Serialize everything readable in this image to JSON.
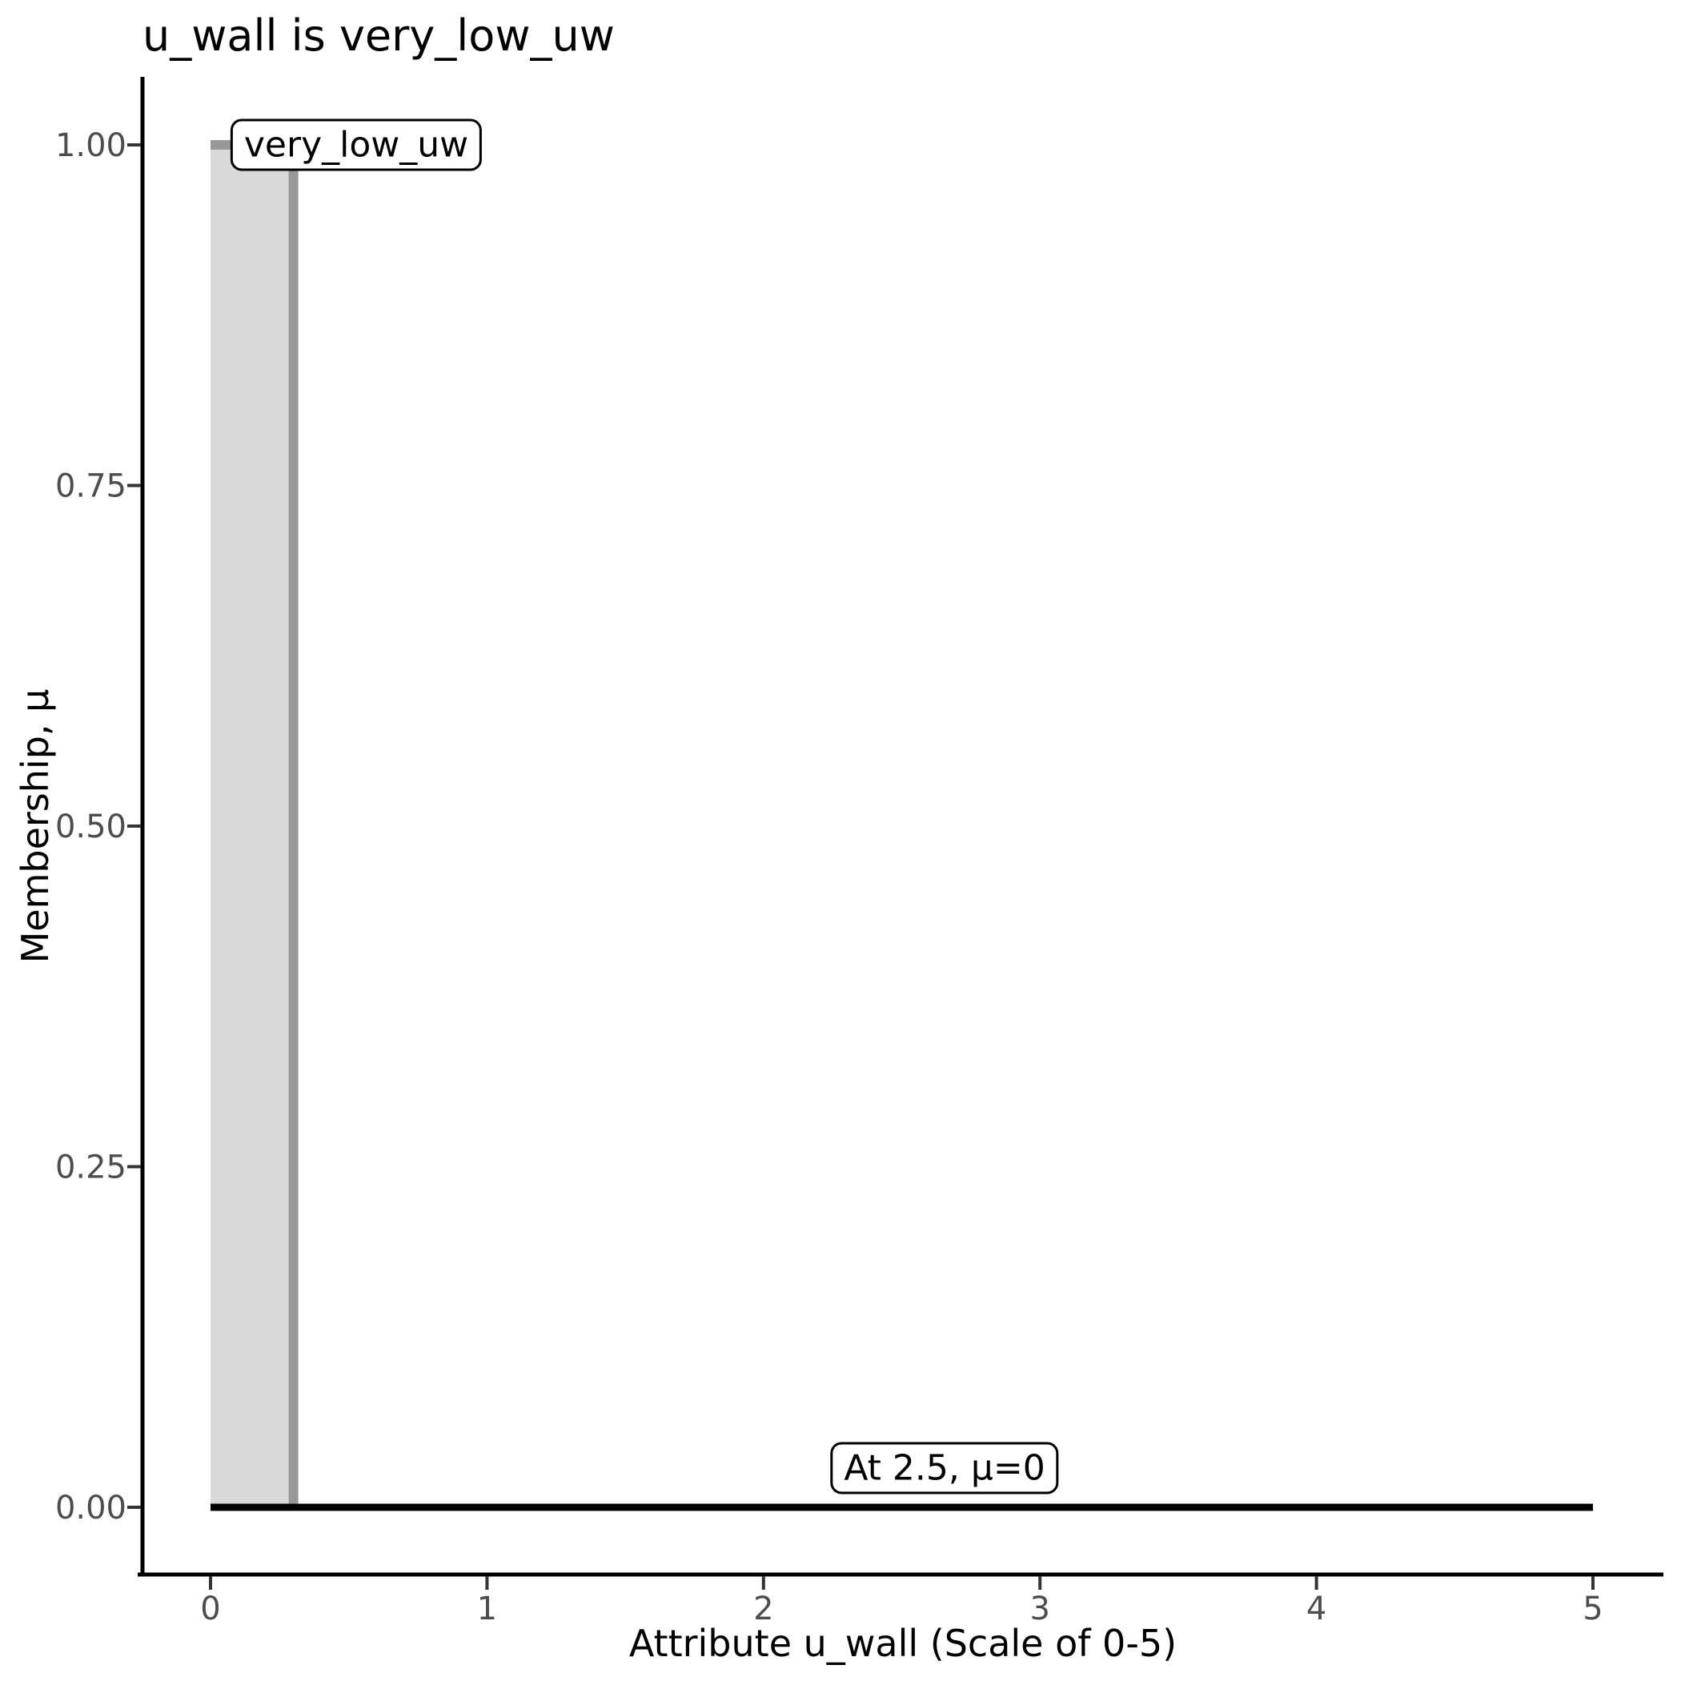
{
  "figure": {
    "background": "#ffffff"
  },
  "chart_data": {
    "type": "area",
    "title": "u_wall is very_low_uw",
    "xlabel": "Attribute u_wall (Scale of 0-5)",
    "ylabel": "Membership, μ",
    "xlim": [
      0,
      5
    ],
    "ylim": [
      0,
      1
    ],
    "grid": false,
    "legend": false,
    "xticks": {
      "values": [
        0,
        1,
        2,
        3,
        4,
        5
      ],
      "labels": [
        "0",
        "1",
        "2",
        "3",
        "4",
        "5"
      ]
    },
    "yticks": {
      "values": [
        0,
        0.25,
        0.5,
        0.75,
        1
      ],
      "labels": [
        "0.00",
        "0.25",
        "0.50",
        "0.75",
        "1.00"
      ]
    },
    "series": [
      {
        "name": "very_low_uw",
        "kind": "area",
        "points": [
          [
            0,
            1
          ],
          [
            0.3,
            1
          ],
          [
            0.3,
            0
          ]
        ],
        "baseline": 0,
        "fill": "#d9d9d9",
        "stroke": "#999999",
        "stroke_width": 12
      },
      {
        "name": "mu-equals-zero-line",
        "kind": "line",
        "points": [
          [
            0,
            0
          ],
          [
            5,
            0
          ]
        ],
        "stroke": "#000000",
        "stroke_width": 9
      }
    ],
    "annotations": [
      {
        "text": "very_low_uw",
        "x": 0.527,
        "y": 1.0
      },
      {
        "text": "At 2.5, μ=0",
        "x": 2.655,
        "y": 0.029
      }
    ],
    "style": {
      "axis_color": "#000000",
      "tick_color": "#333333",
      "tick_label_color": "#4d4d4d",
      "tick_label_size": 40
    }
  }
}
